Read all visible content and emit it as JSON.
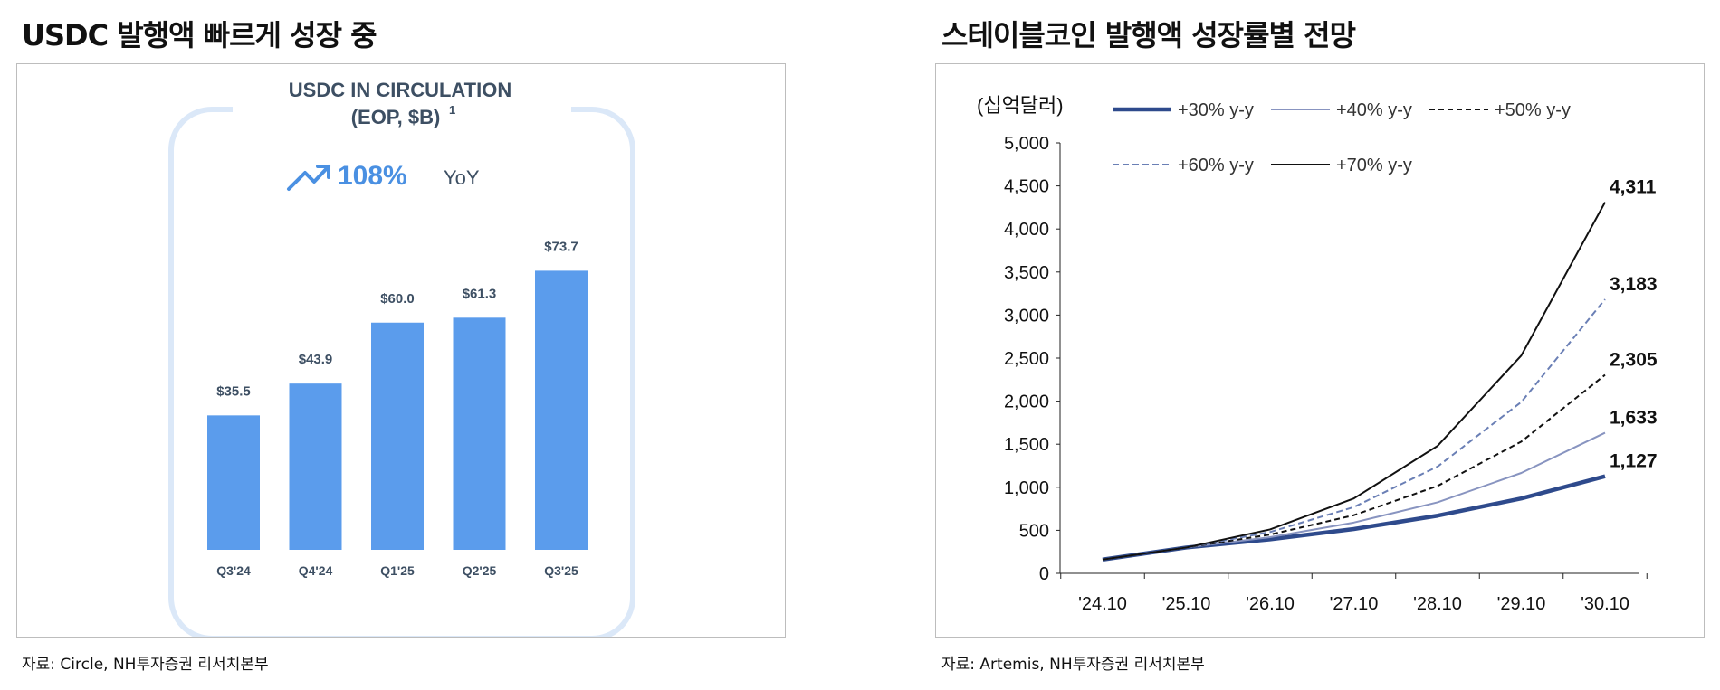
{
  "left": {
    "heading": "USDC 발행액 빠르게 성장 중",
    "source": "자료: Circle, NH투자증권 리서치본부",
    "chart_data": {
      "type": "bar",
      "title": "USDC IN CIRCULATION",
      "subtitle": "(EOP, $B)",
      "subtitle_sup": "1",
      "growth_value": "108%",
      "growth_label": "YoY",
      "categories": [
        "Q3'24",
        "Q4'24",
        "Q1'25",
        "Q2'25",
        "Q3'25"
      ],
      "values": [
        35.5,
        43.9,
        60.0,
        61.3,
        73.7
      ],
      "labels": [
        "$35.5",
        "$43.9",
        "$60.0",
        "$61.3",
        "$73.7"
      ],
      "ylim": [
        0,
        80
      ],
      "bar_color": "#5b9cec",
      "accent_color": "#4a90e2"
    }
  },
  "right": {
    "heading": "스테이블코인 발행액 성장률별 전망",
    "source": "자료: Artemis, NH투자증권 리서치본부",
    "chart_data": {
      "type": "line",
      "unit_label": "(십억달러)",
      "x": [
        "'24.10",
        "'25.10",
        "'26.10",
        "'27.10",
        "'28.10",
        "'29.10",
        "'30.10"
      ],
      "ylim": [
        0,
        5000
      ],
      "yticks": [
        0,
        500,
        1000,
        1500,
        2000,
        2500,
        3000,
        3500,
        4000,
        4500,
        5000
      ],
      "ytick_labels": [
        "0",
        "500",
        "1,000",
        "1,500",
        "2,000",
        "2,500",
        "3,000",
        "3,500",
        "4,000",
        "4,500",
        "5,000"
      ],
      "series": [
        {
          "name": "+30% y-y",
          "values": [
            160,
            300,
            395,
            515,
            670,
            870,
            1127
          ],
          "end_label": "1,127",
          "color": "#2e4a8c",
          "width": 4.5,
          "dash": ""
        },
        {
          "name": "+40% y-y",
          "values": [
            160,
            300,
            420,
            590,
            825,
            1166,
            1633
          ],
          "end_label": "1,633",
          "color": "#8894c0",
          "width": 2,
          "dash": ""
        },
        {
          "name": "+50% y-y",
          "values": [
            160,
            300,
            450,
            675,
            1015,
            1530,
            2305
          ],
          "end_label": "2,305",
          "color": "#111111",
          "width": 2,
          "dash": "6,4"
        },
        {
          "name": "+60% y-y",
          "values": [
            160,
            300,
            480,
            770,
            1240,
            1990,
            3183
          ],
          "end_label": "3,183",
          "color": "#6a7fb5",
          "width": 2,
          "dash": "7,4"
        },
        {
          "name": "+70% y-y",
          "values": [
            160,
            300,
            510,
            870,
            1480,
            2530,
            4311
          ],
          "end_label": "4,311",
          "color": "#111111",
          "width": 2,
          "dash": ""
        }
      ]
    }
  }
}
